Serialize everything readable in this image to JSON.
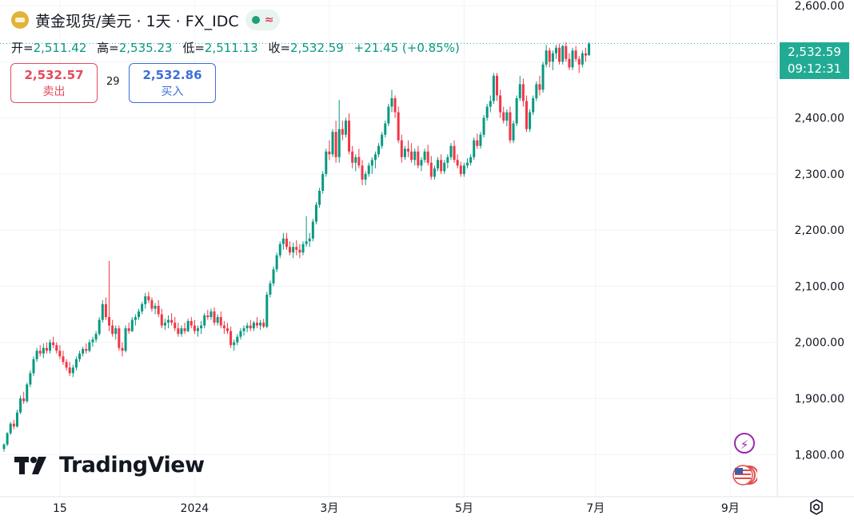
{
  "header": {
    "title": "黄金现货/美元 · 1天 · FX_IDC",
    "open_label": "开=",
    "open_value": "2,511.42",
    "high_label": "高=",
    "high_value": "2,535.23",
    "low_label": "低=",
    "low_value": "2,511.13",
    "close_label": "收=",
    "close_value": "2,532.59",
    "change": "+21.45 (+0.85%)"
  },
  "trade": {
    "sell_price": "2,532.57",
    "sell_label": "卖出",
    "spread": "29",
    "buy_price": "2,532.86",
    "buy_label": "买入"
  },
  "last_price": {
    "price": "2,532.59",
    "time": "09:12:31"
  },
  "branding": {
    "logo_text": "TradingView"
  },
  "icons": {
    "bolt": "lightning-icon",
    "flag": "us-flag-icon",
    "settings": "settings-icon",
    "pill": "market-status-icon"
  },
  "colors": {
    "up": "#089981",
    "down": "#f23645",
    "last_price": "#22ab94",
    "sell": "#e34b5c",
    "buy": "#3d6fd8"
  },
  "chart_data": {
    "type": "candlestick",
    "y_ticks": [
      "2,600.00",
      "2,500.00",
      "2,400.00",
      "2,300.00",
      "2,200.00",
      "2,100.00",
      "2,000.00",
      "1,900.00",
      "1,800.00"
    ],
    "y_tick_values": [
      2600,
      2500,
      2400,
      2300,
      2200,
      2100,
      2000,
      1900,
      1800
    ],
    "ylim": [
      1725,
      2610
    ],
    "x_ticks": [
      "15",
      "2024",
      "3月",
      "5月",
      "7月",
      "9月"
    ],
    "x_tick_index": [
      17,
      58,
      99,
      140,
      180,
      221
    ],
    "grid": true,
    "series": [
      {
        "values": [
          [
            1810,
            1820,
            1805,
            1818
          ],
          [
            1818,
            1840,
            1815,
            1838
          ],
          [
            1838,
            1858,
            1835,
            1855
          ],
          [
            1855,
            1862,
            1845,
            1850
          ],
          [
            1850,
            1880,
            1848,
            1875
          ],
          [
            1875,
            1905,
            1872,
            1900
          ],
          [
            1900,
            1912,
            1890,
            1895
          ],
          [
            1895,
            1928,
            1892,
            1925
          ],
          [
            1925,
            1950,
            1920,
            1945
          ],
          [
            1945,
            1975,
            1940,
            1970
          ],
          [
            1970,
            1990,
            1965,
            1985
          ],
          [
            1985,
            1995,
            1975,
            1980
          ],
          [
            1980,
            1998,
            1972,
            1990
          ],
          [
            1990,
            2000,
            1980,
            1985
          ],
          [
            1985,
            2005,
            1980,
            2000
          ],
          [
            2000,
            2010,
            1990,
            1995
          ],
          [
            1995,
            2000,
            1980,
            1985
          ],
          [
            1985,
            1995,
            1970,
            1975
          ],
          [
            1975,
            1985,
            1960,
            1965
          ],
          [
            1965,
            1970,
            1950,
            1955
          ],
          [
            1955,
            1965,
            1940,
            1945
          ],
          [
            1945,
            1960,
            1938,
            1955
          ],
          [
            1955,
            1975,
            1950,
            1970
          ],
          [
            1970,
            1985,
            1965,
            1980
          ],
          [
            1980,
            1992,
            1975,
            1988
          ],
          [
            1988,
            1998,
            1980,
            1985
          ],
          [
            1985,
            2005,
            1982,
            2000
          ],
          [
            2000,
            2010,
            1992,
            2005
          ],
          [
            2005,
            2020,
            2000,
            2015
          ],
          [
            2015,
            2045,
            2012,
            2040
          ],
          [
            2040,
            2075,
            2035,
            2068
          ],
          [
            2068,
            2080,
            2040,
            2045
          ],
          [
            2045,
            2145,
            2020,
            2030
          ],
          [
            2030,
            2040,
            2010,
            2015
          ],
          [
            2015,
            2030,
            2005,
            2025
          ],
          [
            2025,
            2030,
            1985,
            1990
          ],
          [
            1990,
            2000,
            1975,
            1985
          ],
          [
            1985,
            2030,
            1982,
            2025
          ],
          [
            2025,
            2035,
            2015,
            2020
          ],
          [
            2020,
            2045,
            2018,
            2040
          ],
          [
            2040,
            2050,
            2030,
            2045
          ],
          [
            2045,
            2060,
            2040,
            2055
          ],
          [
            2055,
            2072,
            2050,
            2068
          ],
          [
            2068,
            2088,
            2060,
            2082
          ],
          [
            2082,
            2090,
            2070,
            2075
          ],
          [
            2075,
            2080,
            2055,
            2060
          ],
          [
            2060,
            2070,
            2050,
            2065
          ],
          [
            2065,
            2075,
            2045,
            2050
          ],
          [
            2050,
            2060,
            2025,
            2030
          ],
          [
            2030,
            2042,
            2022,
            2035
          ],
          [
            2035,
            2048,
            2025,
            2040
          ],
          [
            2040,
            2052,
            2030,
            2035
          ],
          [
            2035,
            2045,
            2020,
            2025
          ],
          [
            2025,
            2035,
            2010,
            2015
          ],
          [
            2015,
            2030,
            2010,
            2025
          ],
          [
            2025,
            2035,
            2015,
            2020
          ],
          [
            2020,
            2042,
            2018,
            2038
          ],
          [
            2038,
            2045,
            2025,
            2030
          ],
          [
            2030,
            2040,
            2015,
            2020
          ],
          [
            2020,
            2030,
            2010,
            2025
          ],
          [
            2025,
            2038,
            2015,
            2030
          ],
          [
            2030,
            2052,
            2025,
            2048
          ],
          [
            2048,
            2058,
            2040,
            2045
          ],
          [
            2045,
            2060,
            2040,
            2055
          ],
          [
            2055,
            2062,
            2030,
            2035
          ],
          [
            2035,
            2050,
            2030,
            2045
          ],
          [
            2045,
            2055,
            2025,
            2030
          ],
          [
            2030,
            2038,
            2015,
            2025
          ],
          [
            2025,
            2035,
            2015,
            2020
          ],
          [
            2020,
            2028,
            1990,
            1995
          ],
          [
            1995,
            2005,
            1985,
            2000
          ],
          [
            2000,
            2015,
            1995,
            2010
          ],
          [
            2010,
            2025,
            2005,
            2020
          ],
          [
            2020,
            2030,
            2012,
            2025
          ],
          [
            2025,
            2035,
            2018,
            2030
          ],
          [
            2030,
            2040,
            2020,
            2025
          ],
          [
            2025,
            2038,
            2020,
            2035
          ],
          [
            2035,
            2045,
            2025,
            2030
          ],
          [
            2030,
            2040,
            2022,
            2035
          ],
          [
            2035,
            2042,
            2025,
            2028
          ],
          [
            2028,
            2090,
            2025,
            2085
          ],
          [
            2085,
            2110,
            2080,
            2105
          ],
          [
            2105,
            2135,
            2100,
            2130
          ],
          [
            2130,
            2160,
            2125,
            2155
          ],
          [
            2155,
            2180,
            2150,
            2175
          ],
          [
            2175,
            2195,
            2165,
            2185
          ],
          [
            2185,
            2195,
            2165,
            2170
          ],
          [
            2170,
            2180,
            2155,
            2160
          ],
          [
            2160,
            2178,
            2150,
            2170
          ],
          [
            2170,
            2182,
            2155,
            2165
          ],
          [
            2165,
            2175,
            2150,
            2160
          ],
          [
            2160,
            2180,
            2155,
            2175
          ],
          [
            2175,
            2225,
            2170,
            2180
          ],
          [
            2180,
            2195,
            2170,
            2185
          ],
          [
            2185,
            2220,
            2180,
            2215
          ],
          [
            2215,
            2250,
            2210,
            2245
          ],
          [
            2245,
            2275,
            2240,
            2270
          ],
          [
            2270,
            2305,
            2265,
            2300
          ],
          [
            2300,
            2345,
            2295,
            2340
          ],
          [
            2340,
            2360,
            2325,
            2335
          ],
          [
            2335,
            2380,
            2330,
            2375
          ],
          [
            2375,
            2395,
            2320,
            2330
          ],
          [
            2330,
            2432,
            2320,
            2380
          ],
          [
            2380,
            2395,
            2360,
            2370
          ],
          [
            2370,
            2400,
            2365,
            2395
          ],
          [
            2395,
            2408,
            2335,
            2340
          ],
          [
            2340,
            2350,
            2310,
            2320
          ],
          [
            2320,
            2335,
            2305,
            2330
          ],
          [
            2330,
            2345,
            2310,
            2315
          ],
          [
            2315,
            2325,
            2280,
            2290
          ],
          [
            2290,
            2305,
            2280,
            2300
          ],
          [
            2300,
            2320,
            2295,
            2315
          ],
          [
            2315,
            2330,
            2300,
            2325
          ],
          [
            2325,
            2340,
            2310,
            2335
          ],
          [
            2335,
            2355,
            2330,
            2350
          ],
          [
            2350,
            2375,
            2345,
            2370
          ],
          [
            2370,
            2395,
            2365,
            2390
          ],
          [
            2390,
            2425,
            2385,
            2420
          ],
          [
            2420,
            2450,
            2410,
            2435
          ],
          [
            2435,
            2440,
            2400,
            2410
          ],
          [
            2410,
            2420,
            2355,
            2360
          ],
          [
            2360,
            2370,
            2320,
            2330
          ],
          [
            2330,
            2350,
            2325,
            2345
          ],
          [
            2345,
            2360,
            2330,
            2340
          ],
          [
            2340,
            2355,
            2320,
            2325
          ],
          [
            2325,
            2345,
            2315,
            2340
          ],
          [
            2340,
            2350,
            2310,
            2315
          ],
          [
            2315,
            2330,
            2305,
            2325
          ],
          [
            2325,
            2345,
            2320,
            2340
          ],
          [
            2340,
            2352,
            2315,
            2320
          ],
          [
            2320,
            2332,
            2290,
            2295
          ],
          [
            2295,
            2315,
            2290,
            2310
          ],
          [
            2310,
            2330,
            2305,
            2325
          ],
          [
            2325,
            2335,
            2300,
            2305
          ],
          [
            2305,
            2325,
            2300,
            2320
          ],
          [
            2320,
            2335,
            2310,
            2330
          ],
          [
            2330,
            2355,
            2325,
            2350
          ],
          [
            2350,
            2360,
            2320,
            2325
          ],
          [
            2325,
            2335,
            2310,
            2315
          ],
          [
            2315,
            2322,
            2295,
            2300
          ],
          [
            2300,
            2320,
            2295,
            2315
          ],
          [
            2315,
            2328,
            2310,
            2320
          ],
          [
            2320,
            2335,
            2315,
            2330
          ],
          [
            2330,
            2365,
            2325,
            2360
          ],
          [
            2360,
            2372,
            2345,
            2350
          ],
          [
            2350,
            2375,
            2345,
            2370
          ],
          [
            2370,
            2405,
            2365,
            2400
          ],
          [
            2400,
            2425,
            2395,
            2420
          ],
          [
            2420,
            2440,
            2410,
            2430
          ],
          [
            2430,
            2480,
            2425,
            2475
          ],
          [
            2475,
            2480,
            2430,
            2440
          ],
          [
            2440,
            2450,
            2400,
            2410
          ],
          [
            2410,
            2420,
            2390,
            2395
          ],
          [
            2395,
            2415,
            2385,
            2410
          ],
          [
            2410,
            2420,
            2355,
            2360
          ],
          [
            2360,
            2395,
            2355,
            2390
          ],
          [
            2390,
            2440,
            2385,
            2435
          ],
          [
            2435,
            2475,
            2430,
            2460
          ],
          [
            2460,
            2470,
            2420,
            2430
          ],
          [
            2430,
            2440,
            2375,
            2380
          ],
          [
            2380,
            2415,
            2375,
            2410
          ],
          [
            2410,
            2440,
            2405,
            2435
          ],
          [
            2435,
            2465,
            2430,
            2460
          ],
          [
            2460,
            2475,
            2440,
            2450
          ],
          [
            2450,
            2500,
            2445,
            2495
          ],
          [
            2495,
            2530,
            2490,
            2520
          ],
          [
            2520,
            2525,
            2490,
            2500
          ],
          [
            2500,
            2520,
            2485,
            2515
          ],
          [
            2515,
            2530,
            2505,
            2525
          ],
          [
            2525,
            2532,
            2495,
            2500
          ],
          [
            2500,
            2530,
            2495,
            2528
          ],
          [
            2528,
            2535,
            2500,
            2505
          ],
          [
            2505,
            2515,
            2485,
            2490
          ],
          [
            2490,
            2525,
            2485,
            2520
          ],
          [
            2520,
            2528,
            2500,
            2505
          ],
          [
            2505,
            2510,
            2480,
            2495
          ],
          [
            2495,
            2520,
            2490,
            2515
          ],
          [
            2515,
            2525,
            2500,
            2511
          ],
          [
            2511.42,
            2535.23,
            2511.13,
            2532.59
          ]
        ]
      }
    ]
  }
}
